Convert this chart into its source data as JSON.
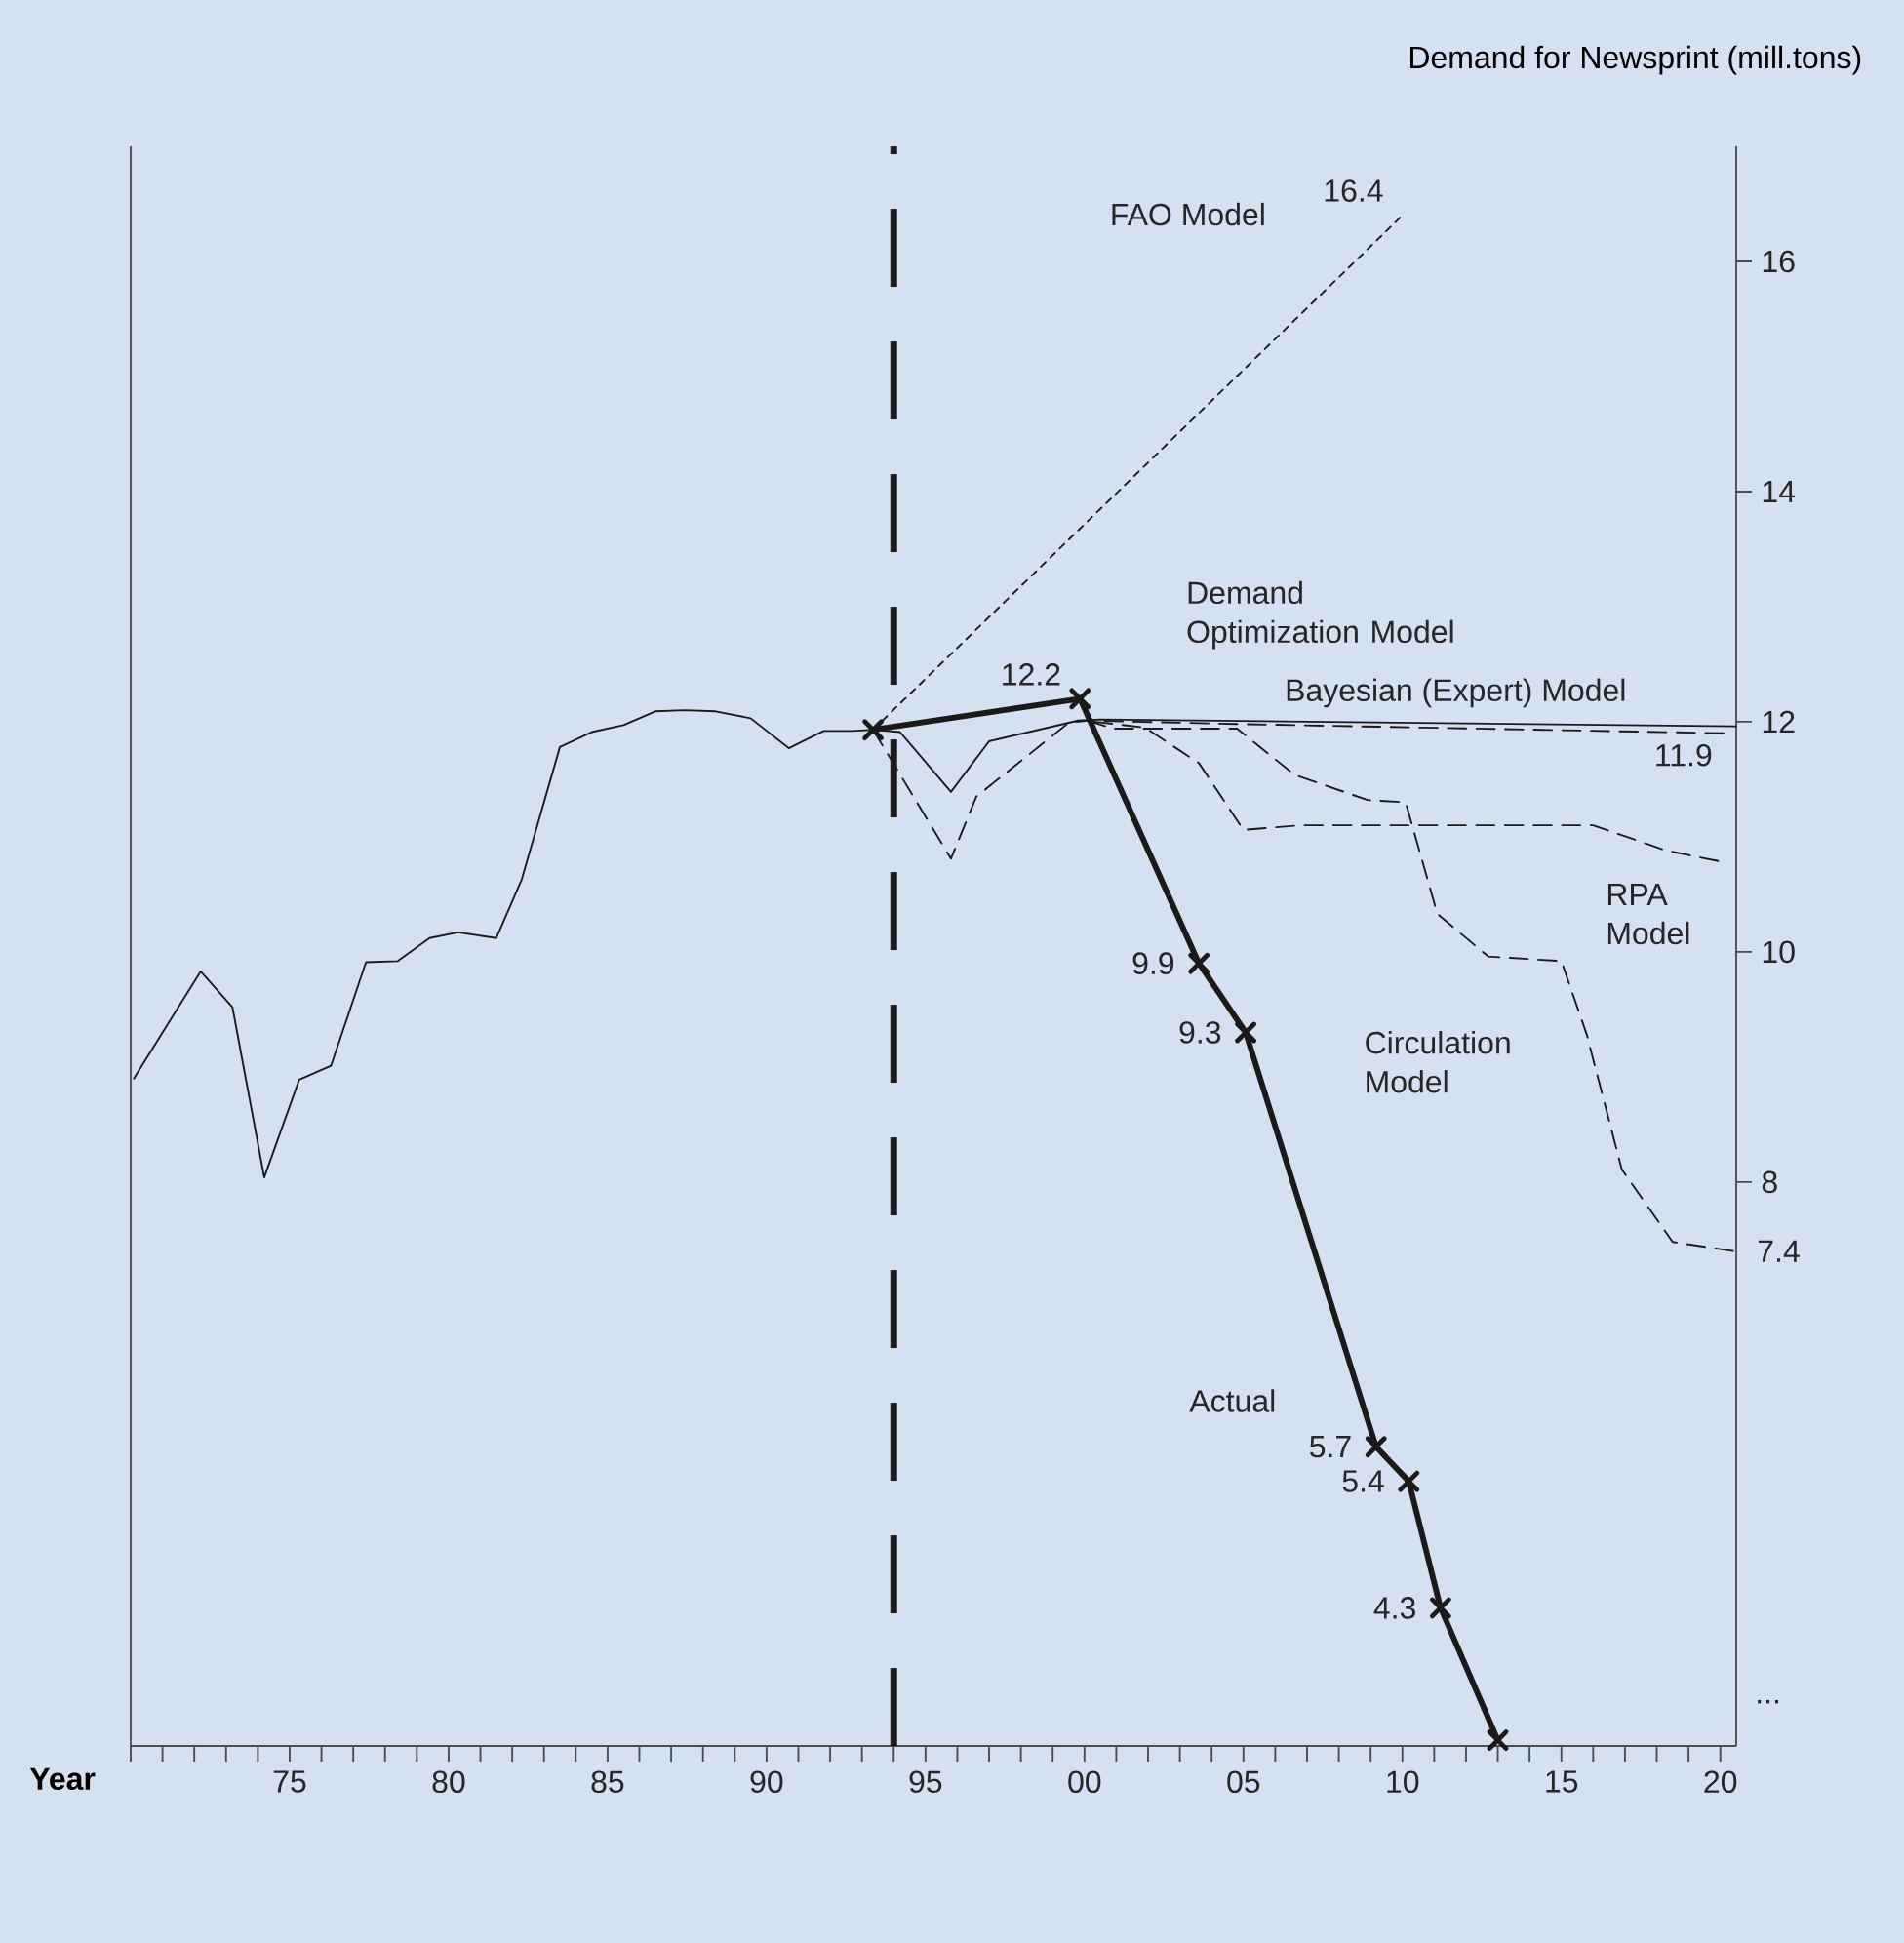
{
  "chart_data": {
    "type": "line",
    "xlabel": "Year",
    "ylabel": "Demand for Newsprint (mill.tons)",
    "xlim": [
      1970,
      2020.5
    ],
    "ylim": [
      3.1,
      17
    ],
    "xticks": [
      {
        "value": 1970,
        "label": null
      },
      {
        "value": 1971,
        "label": null
      },
      {
        "value": 1972,
        "label": null
      },
      {
        "value": 1973,
        "label": null
      },
      {
        "value": 1974,
        "label": null
      },
      {
        "value": 1975,
        "label": "75"
      },
      {
        "value": 1976,
        "label": null
      },
      {
        "value": 1977,
        "label": null
      },
      {
        "value": 1978,
        "label": null
      },
      {
        "value": 1979,
        "label": null
      },
      {
        "value": 1980,
        "label": "80"
      },
      {
        "value": 1981,
        "label": null
      },
      {
        "value": 1982,
        "label": null
      },
      {
        "value": 1983,
        "label": null
      },
      {
        "value": 1984,
        "label": null
      },
      {
        "value": 1985,
        "label": "85"
      },
      {
        "value": 1986,
        "label": null
      },
      {
        "value": 1987,
        "label": null
      },
      {
        "value": 1988,
        "label": null
      },
      {
        "value": 1989,
        "label": null
      },
      {
        "value": 1990,
        "label": "90"
      },
      {
        "value": 1991,
        "label": null
      },
      {
        "value": 1992,
        "label": null
      },
      {
        "value": 1993,
        "label": null
      },
      {
        "value": 1994,
        "label": null
      },
      {
        "value": 1995,
        "label": "95"
      },
      {
        "value": 1996,
        "label": null
      },
      {
        "value": 1997,
        "label": null
      },
      {
        "value": 1998,
        "label": null
      },
      {
        "value": 1999,
        "label": null
      },
      {
        "value": 2000,
        "label": "00"
      },
      {
        "value": 2001,
        "label": null
      },
      {
        "value": 2002,
        "label": null
      },
      {
        "value": 2003,
        "label": null
      },
      {
        "value": 2004,
        "label": null
      },
      {
        "value": 2005,
        "label": "05"
      },
      {
        "value": 2006,
        "label": null
      },
      {
        "value": 2007,
        "label": null
      },
      {
        "value": 2008,
        "label": null
      },
      {
        "value": 2009,
        "label": null
      },
      {
        "value": 2010,
        "label": "10"
      },
      {
        "value": 2011,
        "label": null
      },
      {
        "value": 2012,
        "label": null
      },
      {
        "value": 2013,
        "label": null
      },
      {
        "value": 2014,
        "label": null
      },
      {
        "value": 2015,
        "label": "15"
      },
      {
        "value": 2016,
        "label": null
      },
      {
        "value": 2017,
        "label": null
      },
      {
        "value": 2018,
        "label": null
      },
      {
        "value": 2019,
        "label": null
      },
      {
        "value": 2020,
        "label": "20"
      }
    ],
    "yticks": [
      16,
      14,
      12,
      10,
      8
    ],
    "ref_lines": [
      {
        "axis": "x",
        "value": 1994,
        "line_style": "dashed",
        "color": "#1a1a1a"
      }
    ],
    "annotations": [
      "..."
    ],
    "series": [
      {
        "color": "#1a1a1a",
        "line_style": "solid",
        "x": [
          1970.1,
          1972.2,
          1973.2,
          1974.2,
          1975.3,
          1976.3,
          1977.4,
          1978.4,
          1979.4,
          1980.3,
          1981.5,
          1982.3,
          1983.5,
          1984.5,
          1985.5,
          1986.5,
          1987.4,
          1988.4,
          1989.5,
          1990.7,
          1991.8,
          1992.7,
          1993.35
        ],
        "values": [
          8.9,
          9.83,
          9.52,
          8.04,
          8.89,
          9.01,
          9.91,
          9.92,
          10.12,
          10.17,
          10.12,
          10.63,
          11.78,
          11.91,
          11.97,
          12.09,
          12.1,
          12.09,
          12.03,
          11.77,
          11.92,
          11.92,
          11.93
        ]
      },
      {
        "name": "FAO Model",
        "color": "#1a1a1a",
        "line_style": "dotted",
        "x": [
          1993.35,
          2010.0
        ],
        "values": [
          11.93,
          16.4
        ],
        "value_labels": [
          null,
          "16.4"
        ]
      },
      {
        "name": "Demand Optimization Model",
        "color": "#1a1a1a",
        "line_style": "solid",
        "x": [
          1993.35,
          1994.2,
          1995.8,
          1997.0,
          1999.8,
          2000.5,
          2020.5
        ],
        "values": [
          11.93,
          11.91,
          11.39,
          11.83,
          12.01,
          12.02,
          11.96
        ]
      },
      {
        "name": "Bayesian (Expert) Model",
        "color": "#1a1a1a",
        "line_style": "dashed",
        "x": [
          1993.35,
          1995.8,
          1996.6,
          1999.5,
          2000.1,
          2004.8,
          2020.1
        ],
        "values": [
          11.93,
          10.81,
          11.35,
          11.99,
          12.01,
          11.98,
          11.9
        ],
        "value_labels": [
          null,
          null,
          null,
          null,
          null,
          null,
          "11.9"
        ]
      },
      {
        "name": "RPA Model",
        "color": "#1a1a1a",
        "line_style": "dashed",
        "x": [
          2000.3,
          2001.9,
          2003.6,
          2005.0,
          2006.8,
          2010.9,
          2016.0,
          2018.3,
          2020.1
        ],
        "values": [
          12.0,
          11.95,
          11.64,
          11.06,
          11.1,
          11.1,
          11.1,
          10.88,
          10.78
        ]
      },
      {
        "name": "Circulation Model",
        "color": "#1a1a1a",
        "line_style": "dashed",
        "x": [
          2000.1,
          2000.9,
          2004.8,
          2006.6,
          2008.9,
          2010.1,
          2011.1,
          2012.7,
          2015.0,
          2015.8,
          2016.9,
          2018.5,
          2020.4
        ],
        "values": [
          12.01,
          11.94,
          11.94,
          11.54,
          11.32,
          11.3,
          10.33,
          9.96,
          9.92,
          9.28,
          8.11,
          7.48,
          7.4
        ],
        "value_labels": [
          null,
          null,
          null,
          null,
          null,
          null,
          null,
          null,
          null,
          null,
          null,
          null,
          "7.4"
        ]
      },
      {
        "name": "Actual",
        "color": "#1a1a1a",
        "line_style": "solid",
        "marker": "cross",
        "x": [
          1993.35,
          1999.86,
          2003.6,
          2005.07,
          2009.17,
          2010.2,
          2011.2,
          2013.0
        ],
        "values": [
          11.93,
          12.2,
          9.9,
          9.3,
          5.7,
          5.4,
          4.3,
          3.15
        ],
        "value_labels": [
          null,
          "12.2",
          "9.9",
          "9.3",
          "5.7",
          "5.4",
          "4.3",
          null
        ]
      }
    ]
  }
}
